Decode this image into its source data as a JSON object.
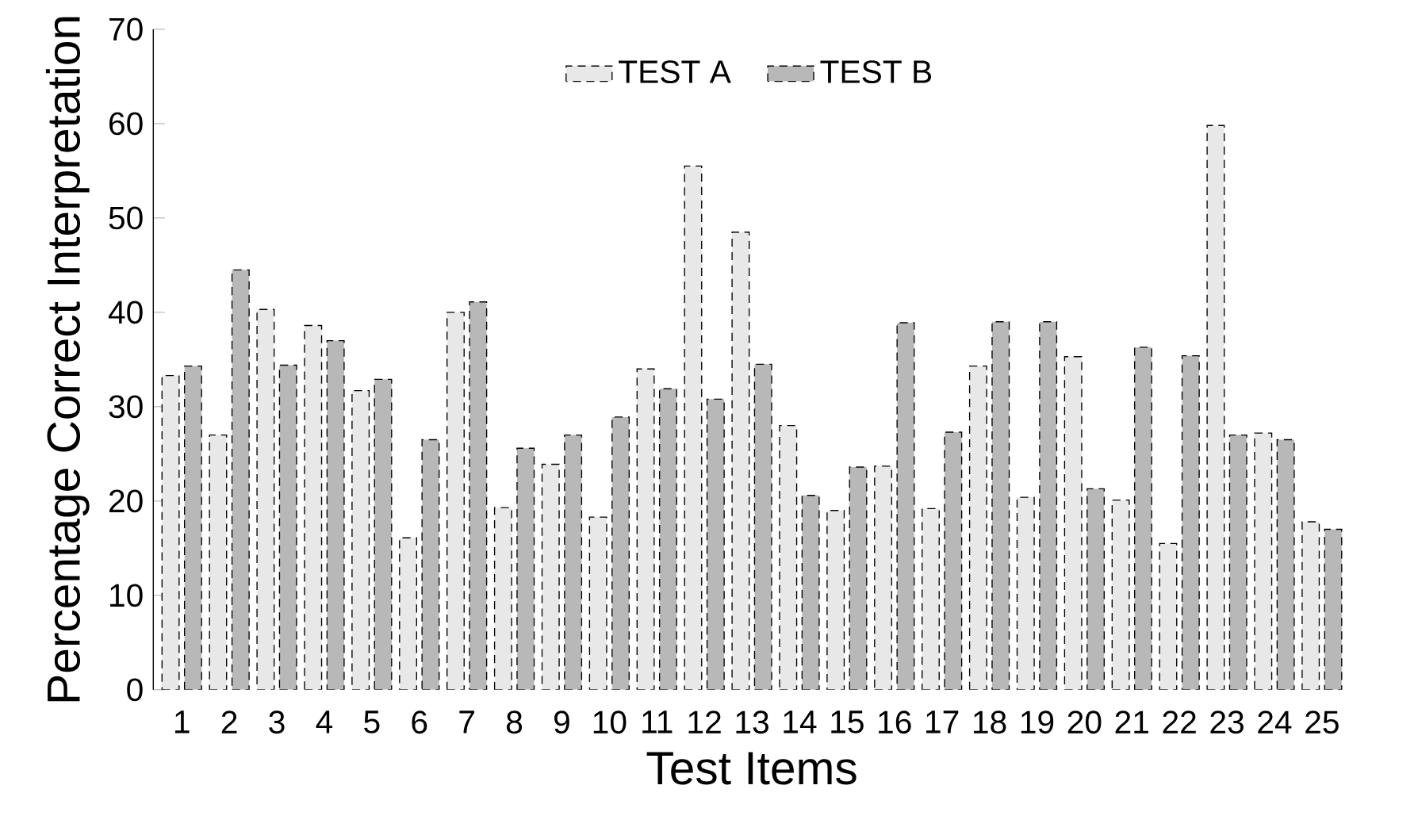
{
  "chart_data": {
    "type": "bar",
    "xlabel": "Test Items",
    "ylabel": "Percentage Correct Interpretation",
    "categories": [
      "1",
      "2",
      "3",
      "4",
      "5",
      "6",
      "7",
      "8",
      "9",
      "10",
      "11",
      "12",
      "13",
      "14",
      "15",
      "16",
      "17",
      "18",
      "19",
      "20",
      "21",
      "22",
      "23",
      "24",
      "25"
    ],
    "series": [
      {
        "name": "TEST A",
        "color": "#e8e8e8",
        "values": [
          33.3,
          27.0,
          40.3,
          38.6,
          31.7,
          16.1,
          40.0,
          19.3,
          23.9,
          18.3,
          34.0,
          55.5,
          48.5,
          28.0,
          19.0,
          23.7,
          19.2,
          34.3,
          20.4,
          35.3,
          20.1,
          15.5,
          59.8,
          27.2,
          17.8
        ]
      },
      {
        "name": "TEST B",
        "color": "#b8b8b8",
        "values": [
          34.3,
          44.5,
          34.4,
          37.0,
          32.9,
          26.5,
          41.1,
          25.6,
          27.0,
          28.9,
          31.9,
          30.8,
          34.5,
          20.6,
          23.6,
          38.9,
          27.3,
          39.0,
          39.0,
          21.3,
          36.3,
          35.4,
          27.0,
          26.5,
          17.0
        ]
      }
    ],
    "ylim": [
      0,
      70
    ],
    "yticks": [
      0,
      10,
      20,
      30,
      40,
      50,
      60,
      70
    ],
    "legend": "top",
    "grid": false
  }
}
